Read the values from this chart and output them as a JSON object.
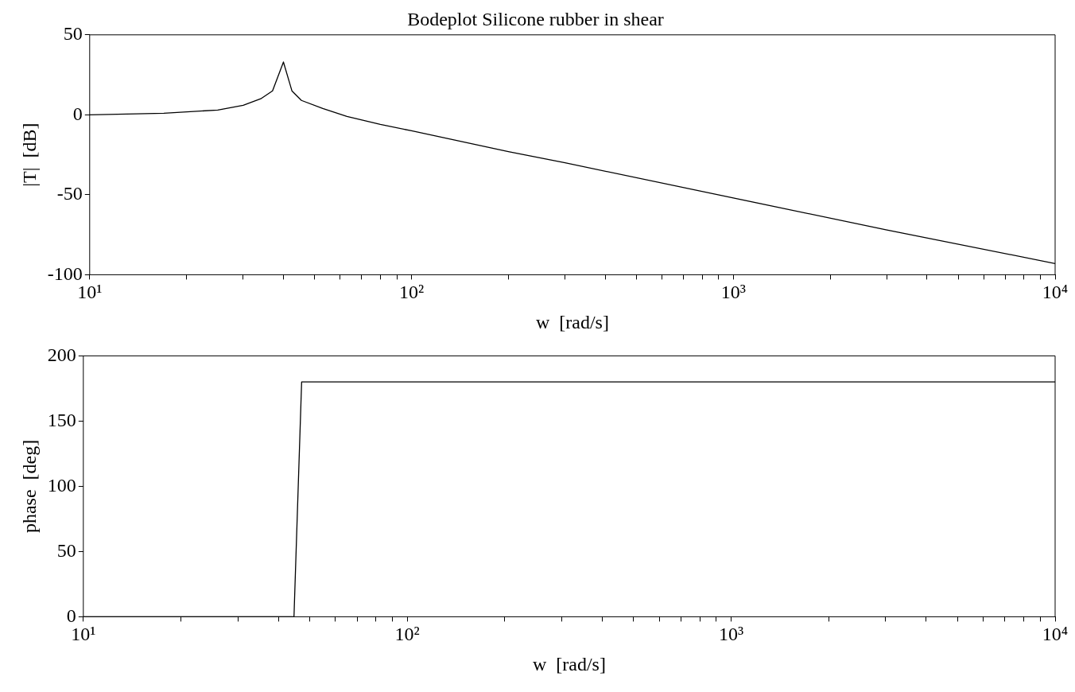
{
  "chart_data": [
    {
      "type": "line",
      "title": "Bodeplot Silicone rubber in shear",
      "xlabel": "w  [rad/s]",
      "ylabel": "|T|  [dB]",
      "log": "x",
      "xlim": [
        10,
        10000
      ],
      "ylim": [
        -100,
        50
      ],
      "yticks": [
        -100,
        -50,
        0,
        50
      ],
      "xticks": [
        {
          "value": 10,
          "label": "10¹"
        },
        {
          "value": 20,
          "label": null
        },
        {
          "value": 30,
          "label": null
        },
        {
          "value": 40,
          "label": null
        },
        {
          "value": 50,
          "label": null
        },
        {
          "value": 60,
          "label": null
        },
        {
          "value": 70,
          "label": null
        },
        {
          "value": 80,
          "label": null
        },
        {
          "value": 90,
          "label": null
        },
        {
          "value": 100,
          "label": "10²"
        },
        {
          "value": 200,
          "label": null
        },
        {
          "value": 300,
          "label": null
        },
        {
          "value": 400,
          "label": null
        },
        {
          "value": 500,
          "label": null
        },
        {
          "value": 600,
          "label": null
        },
        {
          "value": 700,
          "label": null
        },
        {
          "value": 800,
          "label": null
        },
        {
          "value": 900,
          "label": null
        },
        {
          "value": 1000,
          "label": "10³"
        },
        {
          "value": 2000,
          "label": null
        },
        {
          "value": 3000,
          "label": null
        },
        {
          "value": 4000,
          "label": null
        },
        {
          "value": 5000,
          "label": null
        },
        {
          "value": 6000,
          "label": null
        },
        {
          "value": 7000,
          "label": null
        },
        {
          "value": 8000,
          "label": null
        },
        {
          "value": 9000,
          "label": null
        },
        {
          "value": 10000,
          "label": "10⁴"
        }
      ],
      "series": [
        {
          "color": "#000000",
          "x": [
            10,
            17,
            25,
            30,
            34,
            37,
            40,
            42.5,
            45.5,
            53,
            63,
            80,
            100,
            200,
            300,
            1000,
            3000,
            10000
          ],
          "values": [
            0,
            1,
            3,
            6,
            10,
            15,
            33,
            15,
            9,
            4,
            -1,
            -6,
            -10,
            -23,
            -30,
            -52,
            -72,
            -93
          ]
        }
      ]
    },
    {
      "type": "line",
      "xlabel": "w  [rad/s]",
      "ylabel": "phase  [deg]",
      "log": "x",
      "xlim": [
        10,
        10000
      ],
      "ylim": [
        0,
        200
      ],
      "yticks": [
        0,
        50,
        100,
        150,
        200
      ],
      "xticks": [
        {
          "value": 10,
          "label": "10¹"
        },
        {
          "value": 20,
          "label": null
        },
        {
          "value": 30,
          "label": null
        },
        {
          "value": 40,
          "label": null
        },
        {
          "value": 50,
          "label": null
        },
        {
          "value": 60,
          "label": null
        },
        {
          "value": 70,
          "label": null
        },
        {
          "value": 80,
          "label": null
        },
        {
          "value": 90,
          "label": null
        },
        {
          "value": 100,
          "label": "10²"
        },
        {
          "value": 200,
          "label": null
        },
        {
          "value": 300,
          "label": null
        },
        {
          "value": 400,
          "label": null
        },
        {
          "value": 500,
          "label": null
        },
        {
          "value": 600,
          "label": null
        },
        {
          "value": 700,
          "label": null
        },
        {
          "value": 800,
          "label": null
        },
        {
          "value": 900,
          "label": null
        },
        {
          "value": 1000,
          "label": "10³"
        },
        {
          "value": 2000,
          "label": null
        },
        {
          "value": 3000,
          "label": null
        },
        {
          "value": 4000,
          "label": null
        },
        {
          "value": 5000,
          "label": null
        },
        {
          "value": 6000,
          "label": null
        },
        {
          "value": 7000,
          "label": null
        },
        {
          "value": 8000,
          "label": null
        },
        {
          "value": 9000,
          "label": null
        },
        {
          "value": 10000,
          "label": "10⁴"
        }
      ],
      "series": [
        {
          "color": "#000000",
          "x": [
            10,
            44.7,
            47.2,
            10000
          ],
          "values": [
            0,
            0,
            180,
            180
          ]
        }
      ]
    }
  ]
}
